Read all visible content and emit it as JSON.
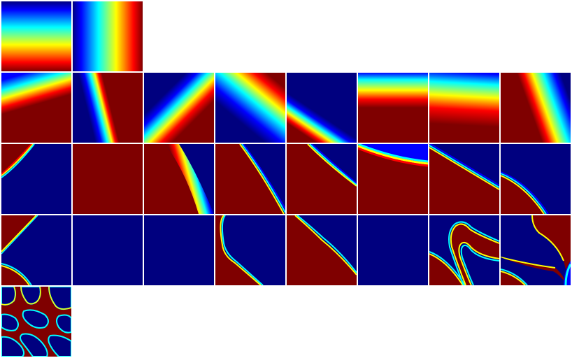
{
  "figure": {
    "description_colormap": "jet",
    "colors": {
      "dark_blue": "#00007f",
      "blue": "#0000ff",
      "cyan": "#00ffff",
      "yellow": "#ffff00",
      "red": "#ff0000",
      "dark_red": "#7f0000",
      "background": "#ffffff"
    },
    "rows": [
      {
        "row": 1,
        "tile_count": 2
      },
      {
        "row": 2,
        "tile_count": 8
      },
      {
        "row": 3,
        "tile_count": 8
      },
      {
        "row": 4,
        "tile_count": 8
      },
      {
        "row": 5,
        "tile_count": 1
      }
    ]
  }
}
